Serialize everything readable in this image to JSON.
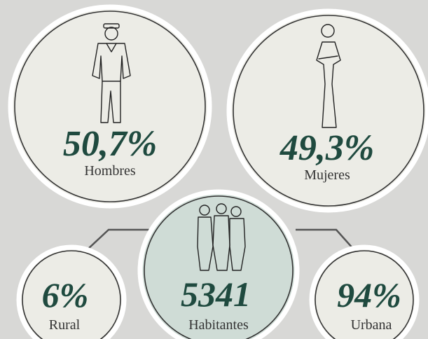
{
  "circles": [
    {
      "value": "50,7%",
      "label": "Hombres"
    },
    {
      "value": "49,3%",
      "label": "Mujeres"
    },
    {
      "value": "5341",
      "label": "Habitantes"
    },
    {
      "value": "6%",
      "label": "Rural"
    },
    {
      "value": "94%",
      "label": "Urbana"
    }
  ]
}
